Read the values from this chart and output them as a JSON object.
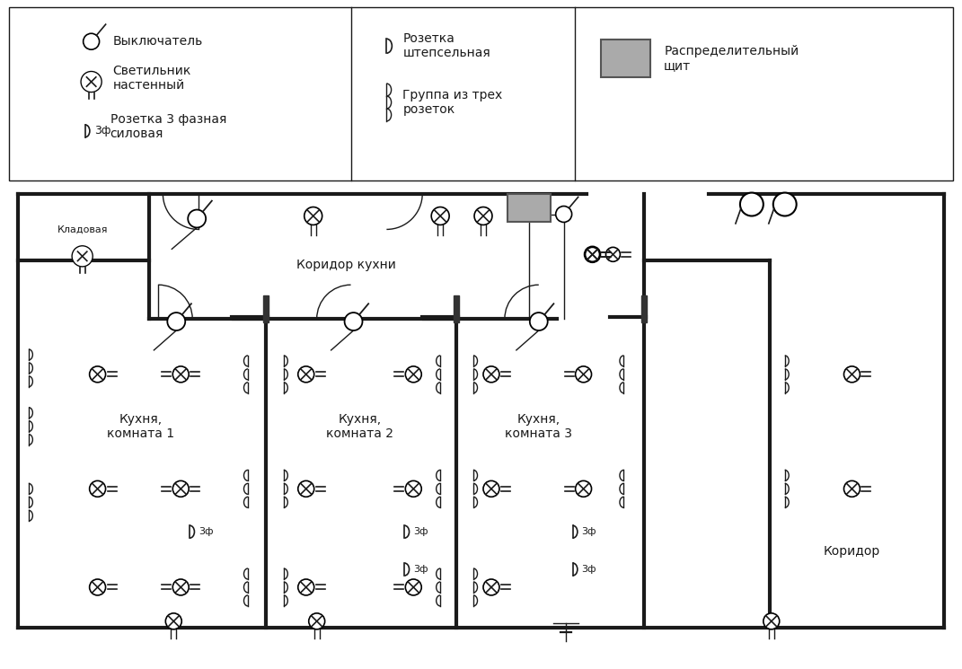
{
  "bg_color": "#ffffff",
  "line_color": "#1a1a1a",
  "gray_fill": "#aaaaaa",
  "gray_edge": "#555555",
  "legend": {
    "switch_label": "Выключатель",
    "lamp_wall_label": "Светильник\nнастенный",
    "socket_3ph_label": "Розетка 3 фазная\nсиловая",
    "socket_label": "Розетка\nштепсельная",
    "socket_group_label": "Группа из трех\nрозеток",
    "panel_label": "Распределительный\nщит"
  },
  "rooms": {
    "corridor_kitchen_label": "Коридор кухни",
    "room1_label": "Кухня,\nкомната 1",
    "room2_label": "Кухня,\nкомната 2",
    "room3_label": "Кухня,\nкомната 3",
    "storage_label": "Кладовая",
    "corridor_label": "Коридор"
  }
}
